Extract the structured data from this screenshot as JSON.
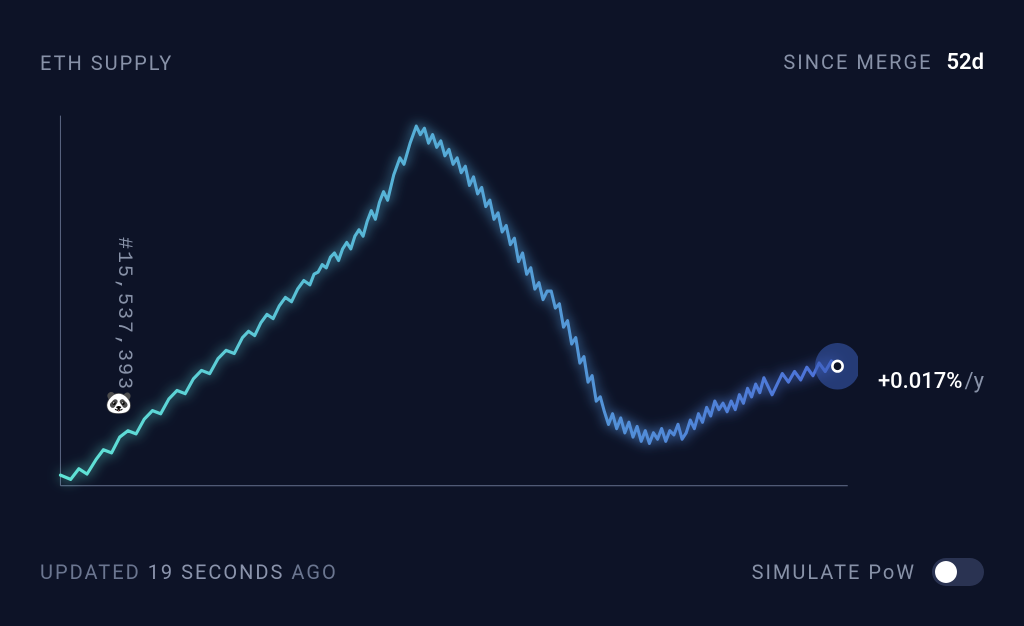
{
  "header": {
    "title": "ETH SUPPLY",
    "since_label": "SINCE MERGE",
    "since_value": "52d"
  },
  "chart": {
    "type": "line",
    "y_axis_label": "#15,537,393",
    "marker_emoji": "🐼",
    "background_color": "#0d1327",
    "axis_color": "#5a6581",
    "axis_width": 1,
    "line_width": 3,
    "glow_blur": 6,
    "gradient_start_color": "#5fe5d6",
    "gradient_end_color": "#4d6fd8",
    "end_marker": {
      "stroke": "#ffffff",
      "fill": "#0d1327",
      "radius": 5,
      "halo_color": "#3a5db8",
      "halo_radius": 22,
      "halo_opacity": 0.55
    },
    "xlim": [
      0,
      760
    ],
    "ylim": [
      0,
      360
    ],
    "points": [
      [
        0,
        350
      ],
      [
        10,
        354
      ],
      [
        18,
        344
      ],
      [
        26,
        349
      ],
      [
        35,
        335
      ],
      [
        42,
        326
      ],
      [
        50,
        329
      ],
      [
        58,
        314
      ],
      [
        66,
        308
      ],
      [
        74,
        311
      ],
      [
        82,
        297
      ],
      [
        90,
        289
      ],
      [
        98,
        292
      ],
      [
        106,
        278
      ],
      [
        114,
        270
      ],
      [
        122,
        273
      ],
      [
        130,
        259
      ],
      [
        138,
        251
      ],
      [
        146,
        254
      ],
      [
        154,
        240
      ],
      [
        162,
        232
      ],
      [
        170,
        235
      ],
      [
        178,
        220
      ],
      [
        184,
        214
      ],
      [
        190,
        218
      ],
      [
        196,
        206
      ],
      [
        202,
        198
      ],
      [
        208,
        202
      ],
      [
        214,
        190
      ],
      [
        220,
        182
      ],
      [
        226,
        186
      ],
      [
        232,
        174
      ],
      [
        238,
        166
      ],
      [
        244,
        170
      ],
      [
        248,
        160
      ],
      [
        252,
        158
      ],
      [
        256,
        151
      ],
      [
        260,
        154
      ],
      [
        264,
        144
      ],
      [
        268,
        140
      ],
      [
        272,
        147
      ],
      [
        276,
        136
      ],
      [
        280,
        130
      ],
      [
        284,
        136
      ],
      [
        288,
        124
      ],
      [
        292,
        118
      ],
      [
        296,
        124
      ],
      [
        300,
        110
      ],
      [
        304,
        100
      ],
      [
        308,
        108
      ],
      [
        312,
        92
      ],
      [
        316,
        82
      ],
      [
        320,
        90
      ],
      [
        326,
        66
      ],
      [
        332,
        50
      ],
      [
        336,
        56
      ],
      [
        342,
        36
      ],
      [
        348,
        20
      ],
      [
        352,
        28
      ],
      [
        356,
        22
      ],
      [
        360,
        36
      ],
      [
        364,
        28
      ],
      [
        368,
        40
      ],
      [
        372,
        34
      ],
      [
        376,
        48
      ],
      [
        380,
        42
      ],
      [
        384,
        56
      ],
      [
        388,
        50
      ],
      [
        392,
        64
      ],
      [
        396,
        58
      ],
      [
        400,
        76
      ],
      [
        404,
        68
      ],
      [
        408,
        84
      ],
      [
        412,
        78
      ],
      [
        416,
        96
      ],
      [
        420,
        90
      ],
      [
        424,
        108
      ],
      [
        428,
        102
      ],
      [
        432,
        120
      ],
      [
        436,
        114
      ],
      [
        440,
        132
      ],
      [
        444,
        126
      ],
      [
        448,
        148
      ],
      [
        452,
        140
      ],
      [
        456,
        160
      ],
      [
        460,
        154
      ],
      [
        464,
        174
      ],
      [
        468,
        168
      ],
      [
        472,
        184
      ],
      [
        476,
        176
      ],
      [
        480,
        176
      ],
      [
        484,
        192
      ],
      [
        488,
        188
      ],
      [
        492,
        210
      ],
      [
        496,
        204
      ],
      [
        500,
        226
      ],
      [
        504,
        220
      ],
      [
        508,
        244
      ],
      [
        512,
        238
      ],
      [
        516,
        262
      ],
      [
        520,
        256
      ],
      [
        524,
        280
      ],
      [
        528,
        276
      ],
      [
        532,
        290
      ],
      [
        536,
        302
      ],
      [
        540,
        292
      ],
      [
        544,
        306
      ],
      [
        548,
        296
      ],
      [
        552,
        310
      ],
      [
        556,
        300
      ],
      [
        560,
        314
      ],
      [
        564,
        304
      ],
      [
        568,
        318
      ],
      [
        572,
        308
      ],
      [
        576,
        320
      ],
      [
        580,
        310
      ],
      [
        584,
        316
      ],
      [
        588,
        306
      ],
      [
        592,
        318
      ],
      [
        596,
        308
      ],
      [
        600,
        312
      ],
      [
        604,
        302
      ],
      [
        608,
        316
      ],
      [
        612,
        310
      ],
      [
        616,
        298
      ],
      [
        620,
        306
      ],
      [
        624,
        292
      ],
      [
        628,
        300
      ],
      [
        632,
        286
      ],
      [
        636,
        294
      ],
      [
        640,
        280
      ],
      [
        644,
        288
      ],
      [
        648,
        282
      ],
      [
        652,
        290
      ],
      [
        656,
        280
      ],
      [
        660,
        288
      ],
      [
        664,
        274
      ],
      [
        668,
        282
      ],
      [
        672,
        268
      ],
      [
        676,
        276
      ],
      [
        680,
        264
      ],
      [
        684,
        272
      ],
      [
        688,
        258
      ],
      [
        692,
        266
      ],
      [
        696,
        274
      ],
      [
        700,
        266
      ],
      [
        706,
        254
      ],
      [
        712,
        262
      ],
      [
        718,
        252
      ],
      [
        724,
        260
      ],
      [
        730,
        248
      ],
      [
        736,
        256
      ],
      [
        742,
        244
      ],
      [
        748,
        252
      ],
      [
        754,
        242
      ],
      [
        760,
        247
      ]
    ],
    "end_label_value": "+0.017%",
    "end_label_unit": "/y"
  },
  "footer": {
    "updated_prefix": "UPDATED ",
    "updated_time": "19 SECONDS",
    "updated_suffix": " AGO",
    "simulate_label": "SIMULATE ",
    "simulate_pow": "PoW",
    "toggle_on": false,
    "toggle_track_color": "#2a3352",
    "toggle_knob_color": "#ffffff"
  },
  "colors": {
    "bg": "#0d1327",
    "muted": "#8892a8",
    "muted_dim": "#6b7690",
    "text": "#ffffff"
  }
}
